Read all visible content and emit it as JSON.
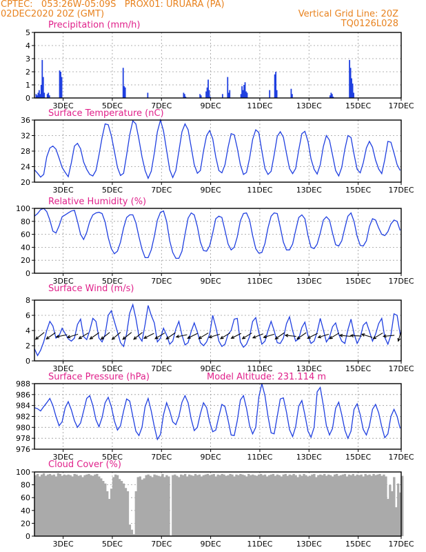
{
  "header": {
    "line1": "CPTEC:   053:26W-05:09S   PROX01: URUARA (PA)",
    "line2": "02DEC2020 20Z (GMT)",
    "grid_note": "Vertical Grid Line: 20Z",
    "code": "TQ0126L028"
  },
  "colors": {
    "header": "#e8821e",
    "panel_title": "#e0208a",
    "line": "#1f3fe0",
    "bar": "#1f3fe0",
    "cloud": "#aaaaaa",
    "grid": "#999999"
  },
  "x_ticks": [
    "3DEC",
    "5DEC",
    "7DEC",
    "9DEC",
    "11DEC",
    "13DEC",
    "15DEC",
    "17DEC"
  ],
  "chart_data": [
    {
      "type": "bar",
      "title": "Precipitation (mm/h)",
      "ylim": [
        0,
        5
      ],
      "yticks": [
        "0",
        "1",
        "2",
        "3",
        "4",
        "5"
      ],
      "values": [
        0,
        0.3,
        0.2,
        0.4,
        0.6,
        0.3,
        1,
        2.9,
        1.6,
        0.4,
        0,
        0,
        0.3,
        0.4,
        0.2,
        0,
        0,
        0,
        0,
        0,
        0,
        0,
        0,
        0,
        2.1,
        2,
        1.6,
        0,
        0,
        0,
        0,
        0,
        0,
        0,
        0,
        0,
        0,
        0,
        0,
        0,
        0,
        0,
        0,
        0,
        0,
        0,
        0,
        0,
        0,
        0,
        0,
        0,
        0,
        0,
        0,
        0,
        0,
        0,
        0,
        0,
        0,
        0,
        0,
        0,
        0,
        0,
        0,
        0,
        0,
        0,
        0,
        0,
        0,
        0,
        0,
        0,
        0,
        0,
        0,
        0,
        0,
        0,
        0,
        0,
        0,
        0,
        2.3,
        0.9,
        0.8,
        0,
        0,
        0,
        0,
        0,
        0,
        0,
        0,
        0,
        0,
        0,
        0,
        0,
        0,
        0,
        0,
        0,
        0,
        0,
        0,
        0,
        0.4,
        0,
        0,
        0,
        0,
        0,
        0,
        0,
        0,
        0,
        0,
        0,
        0,
        0,
        0,
        0,
        0,
        0,
        0,
        0,
        0,
        0,
        0,
        0,
        0,
        0,
        0,
        0,
        0,
        0,
        0,
        0,
        0,
        0,
        0,
        0.4,
        0.3,
        0.1,
        0,
        0,
        0,
        0,
        0,
        0,
        0,
        0,
        0,
        0,
        0,
        0,
        0,
        0.3,
        0.2,
        0,
        0,
        0,
        0,
        0.5,
        0.8,
        1.4,
        0.6,
        0.1,
        0,
        0,
        0,
        0,
        0,
        0,
        0,
        0,
        0,
        0,
        0,
        0.3,
        0,
        0,
        0,
        0,
        1.6,
        0.4,
        0.6,
        0,
        0,
        0,
        0,
        0,
        0,
        0,
        0,
        0,
        0,
        0.3,
        0.9,
        0.6,
        1,
        1.2,
        0.5,
        0.4,
        0,
        0,
        0,
        0,
        0,
        0,
        0,
        0,
        0,
        0,
        0,
        0,
        0,
        0,
        0,
        0,
        0,
        0,
        0,
        0,
        0,
        0.6,
        0,
        0,
        0,
        0,
        1.8,
        2,
        0.6,
        0,
        0,
        0,
        0,
        0,
        0,
        0,
        0,
        0,
        0,
        0,
        0,
        0,
        0.7,
        0.3,
        0,
        0,
        0,
        0,
        0,
        0,
        0,
        0,
        0,
        0,
        0,
        0,
        0,
        0,
        0,
        0,
        0,
        0,
        0,
        0,
        0,
        0,
        0,
        0,
        0,
        0,
        0,
        0,
        0,
        0,
        0,
        0,
        0,
        0,
        0,
        0,
        0.2,
        0.4,
        0.3,
        0.1,
        0,
        0,
        0,
        0,
        0,
        0,
        0,
        0,
        0,
        0,
        0,
        0,
        0,
        0,
        0,
        2.9,
        2.3,
        1.5,
        1.1,
        0.4
      ],
      "x_start_hour": 0,
      "step_hours": 1
    },
    {
      "type": "line",
      "title": "Surface Temperature (nC)",
      "ylim": [
        20,
        36
      ],
      "yticks": [
        "20",
        "24",
        "28",
        "32",
        "36"
      ],
      "values": [
        23.2,
        22.3,
        21.3,
        22,
        26.5,
        28.8,
        29.3,
        28.5,
        26.2,
        23.8,
        22.5,
        21.4,
        25,
        29.3,
        30,
        28.6,
        25.2,
        23.3,
        22,
        21.6,
        23,
        27,
        31.5,
        35,
        34.8,
        32,
        28,
        23.8,
        21.7,
        22.3,
        27,
        32.2,
        35.8,
        35,
        31,
        26.5,
        23,
        21,
        22.8,
        27.5,
        33,
        36,
        33.2,
        28.2,
        23.2,
        21.2,
        23,
        28,
        33,
        35,
        33.5,
        29,
        24.5,
        22.3,
        23,
        28,
        32,
        33.3,
        31.2,
        26.5,
        23,
        22.4,
        24.5,
        29,
        32.5,
        32.2,
        28.8,
        24.5,
        22,
        22.5,
        26.2,
        31,
        33.5,
        32.8,
        28,
        23.5,
        22,
        22.8,
        27,
        31.8,
        33,
        31.6,
        27.4,
        23.5,
        22.2,
        23.5,
        28.3,
        32.5,
        33.1,
        30.5,
        26,
        23.3,
        22.1,
        24.5,
        29.2,
        32,
        30.8,
        27,
        23,
        21.6,
        23.8,
        28.5,
        32,
        31.5,
        27.2,
        23.3,
        22.4,
        25,
        28.8,
        30.5,
        29,
        25.7,
        23.4,
        22.2,
        25.8,
        30.5,
        30.3,
        27.5,
        24.5,
        23,
        22.3,
        25,
        29.5,
        31,
        29.5,
        26,
        23.1,
        22.5,
        25.8,
        30.4,
        33,
        31,
        27,
        23.5,
        23.8,
        27.5,
        29.5,
        28.6,
        29,
        28.8
      ],
      "x_start_hour": 0,
      "step_hours": 3
    },
    {
      "type": "line",
      "title": "Relative Humidity (%)",
      "ylim": [
        0,
        100
      ],
      "yticks": [
        "0",
        "20",
        "40",
        "60",
        "80",
        "100"
      ],
      "values": [
        88,
        92,
        98,
        100,
        95,
        82,
        65,
        62,
        73,
        87,
        90,
        93,
        96,
        97,
        80,
        60,
        52,
        63,
        80,
        90,
        93,
        94,
        92,
        79,
        55,
        38,
        30,
        34,
        48,
        70,
        86,
        90,
        90,
        78,
        56,
        37,
        24,
        24,
        36,
        57,
        82,
        94,
        96,
        80,
        50,
        32,
        23,
        23,
        34,
        60,
        85,
        93,
        90,
        72,
        48,
        35,
        34,
        42,
        62,
        84,
        88,
        86,
        66,
        45,
        36,
        40,
        56,
        81,
        92,
        93,
        82,
        58,
        38,
        31,
        32,
        46,
        70,
        88,
        93,
        92,
        71,
        48,
        36,
        36,
        45,
        66,
        86,
        90,
        84,
        58,
        40,
        38,
        45,
        62,
        82,
        87,
        82,
        62,
        44,
        42,
        50,
        70,
        88,
        93,
        80,
        57,
        43,
        42,
        50,
        72,
        84,
        82,
        70,
        60,
        58,
        64,
        76,
        82,
        80,
        66,
        52,
        46,
        48,
        62,
        78,
        86,
        86,
        72,
        52,
        44,
        40,
        42,
        56,
        76,
        90,
        94,
        78,
        52,
        54,
        70,
        78,
        76
      ],
      "x_start_hour": 0,
      "step_hours": 3
    },
    {
      "type": "line",
      "title": "Surface Wind (m/s)",
      "ylim": [
        0,
        8
      ],
      "yticks": [
        "0",
        "2",
        "4",
        "6",
        "8"
      ],
      "values": [
        1.6,
        0.7,
        1.4,
        2.5,
        4,
        5.2,
        4.6,
        3,
        3.3,
        4.3,
        3.6,
        2.9,
        2.6,
        3,
        4.8,
        5.5,
        3.2,
        2.8,
        4,
        5.6,
        5.2,
        3,
        2.5,
        3.5,
        6,
        6.6,
        5.2,
        3.8,
        2.4,
        1.9,
        3.6,
        6.3,
        7.4,
        5.6,
        3.2,
        2.6,
        4.8,
        7.3,
        6,
        5,
        2.5,
        3,
        4.3,
        3.4,
        2.2,
        2.6,
        4.2,
        5.2,
        3.4,
        2.1,
        2.4,
        3.9,
        5,
        3.8,
        2.4,
        2,
        2.5,
        3.5,
        6,
        4.5,
        2.6,
        1.9,
        2.2,
        3.5,
        4,
        5.5,
        5.6,
        2.5,
        1.8,
        2.2,
        3.2,
        5.2,
        5.7,
        3.8,
        2.2,
        2.6,
        4,
        5.2,
        4,
        2.4,
        2.3,
        3,
        4.9,
        5.8,
        4,
        2.6,
        2.9,
        4.4,
        5.1,
        3.3,
        2.3,
        2.6,
        3.8,
        5.6,
        4.1,
        2.5,
        3.1,
        4.5,
        5,
        3.5,
        2.6,
        2.3,
        4.1,
        5.5,
        3.6,
        2.3,
        3.1,
        4.7,
        5.1,
        3.9,
        2.6,
        3.5,
        4.9,
        5.6,
        3.1,
        2.2,
        3.4,
        6.2,
        6,
        3.5,
        2.3,
        3.3,
        5.2,
        4.2,
        2.8,
        2.3,
        2.9,
        4.4,
        5.2,
        3.4,
        2.2,
        3.4,
        6.7,
        5,
        3,
        1.3,
        0.7,
        0.9,
        1.2,
        1.5
      ],
      "x_start_hour": 0,
      "step_hours": 3
    },
    {
      "type": "line",
      "title": "Surface Pressure (hPa)",
      "annotation": "Model Altitude: 231.114 m",
      "ylim": [
        976,
        988
      ],
      "yticks": [
        "976",
        "978",
        "980",
        "982",
        "984",
        "986",
        "988"
      ],
      "values": [
        983.6,
        983.4,
        983,
        983.8,
        984.5,
        985.3,
        984,
        982,
        980.3,
        981,
        983.6,
        984.7,
        983.2,
        981.2,
        980,
        980.8,
        983,
        985.3,
        985.8,
        984,
        981.4,
        980.1,
        981.8,
        984.5,
        985.5,
        983.8,
        981.2,
        979.5,
        980.3,
        983,
        985.2,
        984.8,
        982,
        979.3,
        978.5,
        980,
        983.8,
        985.3,
        983,
        980.1,
        977.8,
        978.7,
        982.3,
        984.5,
        983,
        981,
        980.5,
        982,
        984.6,
        985.8,
        984.5,
        981.5,
        979.4,
        980,
        982.5,
        984.5,
        983.6,
        981,
        979.2,
        979.5,
        982,
        984.2,
        983.8,
        981.3,
        978.6,
        978.5,
        981.2,
        985,
        985.8,
        983.5,
        980.3,
        978.8,
        980,
        985.5,
        988,
        985.8,
        982,
        979,
        978.8,
        982,
        985.2,
        985.4,
        982.8,
        979.6,
        978.3,
        980.1,
        983.9,
        984.9,
        982.3,
        979.3,
        978.2,
        980,
        986.5,
        987.3,
        984,
        980.3,
        978.6,
        979.8,
        983.5,
        984.6,
        982.3,
        979.5,
        978,
        979.3,
        983.3,
        984.3,
        982.3,
        979.6,
        978.6,
        980.3,
        983.3,
        984.2,
        982.7,
        980.1,
        978.1,
        978.8,
        982,
        983.3,
        982,
        979.8,
        978.8,
        980.2,
        982.3,
        983.6,
        982,
        979.4,
        977.4,
        978.4,
        981.5,
        983.3,
        982.5,
        980,
        978.2,
        979,
        981.6,
        982.9,
        981.3,
        978.8,
        977.5,
        978.5,
        980.8
      ],
      "x_start_hour": 0,
      "step_hours": 3
    },
    {
      "type": "bar",
      "title": "Cloud Cover (%)",
      "ylim": [
        0,
        100
      ],
      "yticks": [
        "0",
        "20",
        "40",
        "60",
        "80",
        "100"
      ],
      "values": [
        95,
        97,
        93,
        96,
        98,
        94,
        96,
        97,
        95,
        96,
        93,
        98,
        97,
        94,
        96,
        95,
        96,
        95,
        93,
        97,
        96,
        94,
        95,
        92,
        95,
        96,
        97,
        95,
        94,
        96,
        97,
        93,
        90,
        86,
        82,
        70,
        58,
        74,
        92,
        96,
        95,
        89,
        86,
        82,
        75,
        70,
        18,
        10,
        3,
        70,
        92,
        93,
        88,
        90,
        95,
        96,
        94,
        92,
        96,
        95,
        94,
        93,
        97,
        92,
        95,
        93,
        1,
        95,
        96,
        94,
        92,
        96,
        95,
        97,
        93,
        96,
        95,
        94,
        97,
        95,
        96,
        93,
        95,
        96,
        97,
        95,
        96,
        97,
        93,
        96,
        95,
        97,
        96,
        94,
        95,
        97,
        96,
        93,
        96,
        95,
        97,
        96,
        95,
        93,
        97,
        95,
        96,
        95,
        94,
        96,
        97,
        95,
        96,
        93,
        95,
        96,
        97,
        94,
        96,
        95,
        93,
        96,
        97,
        94,
        96,
        95,
        97,
        95,
        92,
        96,
        94,
        97,
        95,
        93,
        94,
        96,
        97,
        92,
        95,
        96,
        95,
        97,
        94,
        96,
        95,
        93,
        96,
        97,
        94,
        95,
        96,
        97,
        93,
        96,
        95,
        97,
        94,
        96,
        95,
        96,
        93,
        97,
        95,
        96,
        94,
        97,
        95,
        96,
        97,
        94,
        96,
        93,
        58,
        80,
        70,
        92,
        45,
        82,
        68,
        94,
        96,
        95,
        93,
        96,
        97,
        94,
        95,
        96,
        93,
        97,
        95,
        96,
        94,
        97,
        96,
        95,
        93,
        97,
        95,
        96,
        97,
        94,
        95,
        96,
        95,
        93,
        96,
        97,
        94,
        95,
        96,
        97,
        93,
        96,
        95,
        94,
        97,
        96,
        95,
        93,
        96,
        97,
        95,
        94,
        96,
        95,
        97,
        93,
        96,
        95,
        94,
        97,
        96,
        95,
        93,
        96,
        97,
        94,
        95,
        96,
        97,
        93,
        96,
        95,
        97,
        94,
        96,
        95,
        96,
        93,
        97,
        95,
        96,
        94,
        97,
        96,
        95,
        93,
        96,
        97,
        94,
        95,
        96,
        97
      ],
      "x_start_hour": 0,
      "step_hours": 2
    }
  ],
  "wind_arrows": [
    {
      "u": -1,
      "v": -0.8
    },
    {
      "u": -1,
      "v": -0.7
    },
    {
      "u": -1,
      "v": -0.2
    },
    {
      "u": -1,
      "v": -0.3
    },
    {
      "u": -1,
      "v": -0.6
    },
    {
      "u": -1,
      "v": -0.7
    },
    {
      "u": -1,
      "v": -0.8
    },
    {
      "u": -1,
      "v": -0.85
    },
    {
      "u": -1,
      "v": -0.8
    },
    {
      "u": -1,
      "v": -0.8
    },
    {
      "u": -1,
      "v": -0.5
    },
    {
      "u": -1,
      "v": -0.6
    },
    {
      "u": -1,
      "v": -0.7
    },
    {
      "u": -1,
      "v": -0.2
    },
    {
      "u": -1,
      "v": -0.5
    },
    {
      "u": -1,
      "v": -0.6
    },
    {
      "u": -1,
      "v": -0.3
    },
    {
      "u": -1,
      "v": -0.6
    },
    {
      "u": -1,
      "v": -0.5
    },
    {
      "u": -1,
      "v": -0.6
    },
    {
      "u": -1,
      "v": -0.4
    },
    {
      "u": -1,
      "v": -0.3
    },
    {
      "u": -1,
      "v": -0.7
    },
    {
      "u": -1,
      "v": 0.1
    },
    {
      "u": -1,
      "v": -0.7
    },
    {
      "u": -1,
      "v": -0.5
    },
    {
      "u": -1,
      "v": -0.3
    },
    {
      "u": -1,
      "v": -0.6
    },
    {
      "u": -1,
      "v": 0.1
    },
    {
      "u": -1,
      "v": 0.05
    },
    {
      "u": -1,
      "v": 0.3
    },
    {
      "u": -1,
      "v": -0.6
    },
    {
      "u": -1,
      "v": -0.1
    },
    {
      "u": -0.3,
      "v": -1
    }
  ]
}
